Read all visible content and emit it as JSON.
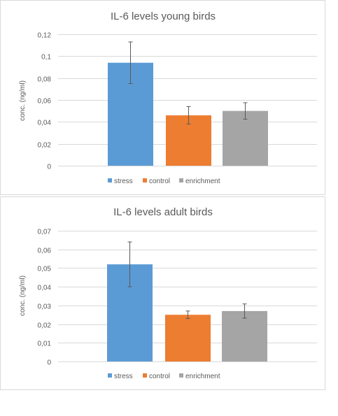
{
  "colors": {
    "stress": "#5b9bd5",
    "control": "#ed7d31",
    "enrichment": "#a5a5a5",
    "grid": "#d9d9d9",
    "text": "#595959",
    "error": "#595959"
  },
  "chart_data": [
    {
      "type": "bar",
      "title": "IL-6 levels young birds",
      "ylabel": "conc. (ng/ml)",
      "categories": [
        "stress",
        "control",
        "enrichment"
      ],
      "values": [
        0.094,
        0.046,
        0.05
      ],
      "errors": [
        0.019,
        0.008,
        0.0075
      ],
      "yticks": [
        "0",
        "0,02",
        "0,04",
        "0,06",
        "0,08",
        "0,1",
        "0,12"
      ],
      "ylim": [
        0,
        0.12
      ],
      "grid": true,
      "legend": "bottom"
    },
    {
      "type": "bar",
      "title": "IL-6 levels adult birds",
      "ylabel": "conc. (ng/ml)",
      "categories": [
        "stress",
        "control",
        "enrichment"
      ],
      "values": [
        0.052,
        0.025,
        0.027
      ],
      "errors": [
        0.012,
        0.002,
        0.0038
      ],
      "yticks": [
        "0",
        "0,01",
        "0,02",
        "0,03",
        "0,04",
        "0,05",
        "0,06",
        "0,07"
      ],
      "ylim": [
        0,
        0.07
      ],
      "grid": true,
      "legend": "bottom"
    }
  ]
}
